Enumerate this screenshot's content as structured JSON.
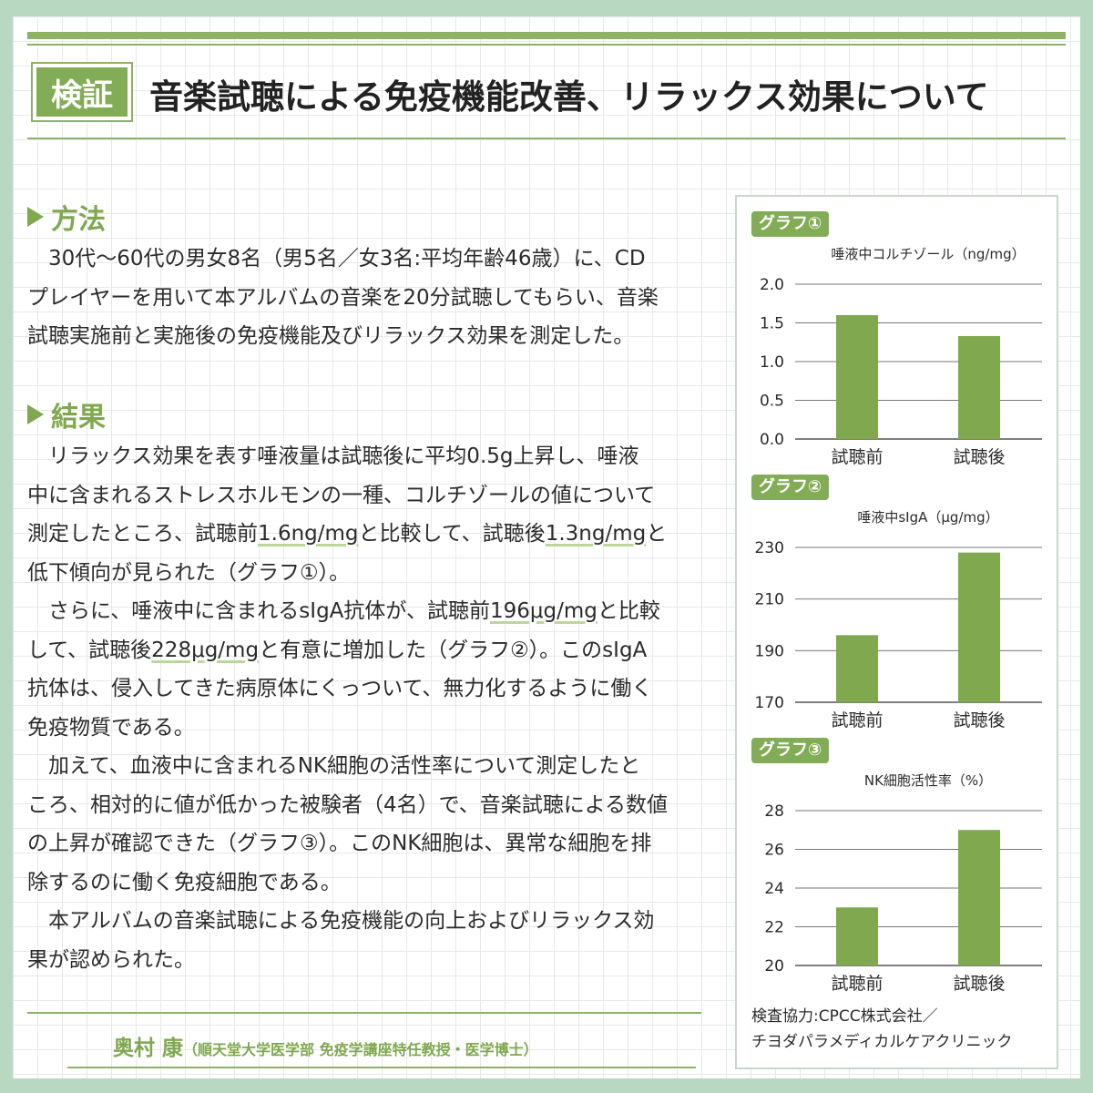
{
  "badge": "検証",
  "title": "音楽試聴による免疫機能改善、リラックス効果について",
  "method": {
    "heading": "方法",
    "lines": [
      "30代〜60代の男女8名（男5名／女3名:平均年齢46歳）に、CD",
      "プレイヤーを用いて本アルバムの音楽を20分試聴してもらい、音楽",
      "試聴実施前と実施後の免疫機能及びリラックス効果を測定した。"
    ]
  },
  "results": {
    "heading": "結果",
    "p1": {
      "l1": "リラックス効果を表す唾液量は試聴後に平均0.5g上昇し、唾液",
      "l2": "中に含まれるストレスホルモンの一種、コルチゾールの値について",
      "l3a": "測定したところ、試聴前",
      "l3b": "1.6ng/mg",
      "l3c": "と比較して、試聴後",
      "l3d": "1.3ng/mg",
      "l3e": "と",
      "l4": "低下傾向が見られた（グラフ①）。"
    },
    "p2": {
      "l1a": "さらに、唾液中に含まれるsIgA抗体が、試聴前",
      "l1b": "196μg/mg",
      "l1c": "と比較",
      "l2a": "して、試聴後",
      "l2b": "228μg/mg",
      "l2c": "と有意に増加した（グラフ②）。このsIgA",
      "l3": "抗体は、侵入してきた病原体にくっついて、無力化するように働く",
      "l4": "免疫物質である。"
    },
    "p3": {
      "l1": "加えて、血液中に含まれるNK細胞の活性率について測定したと",
      "l2": "ころ、相対的に値が低かった被験者（4名）で、音楽試聴による数値",
      "l3": "の上昇が確認できた（グラフ③）。このNK細胞は、異常な細胞を排",
      "l4": "除するのに働く免疫細胞である。"
    },
    "p4": {
      "l1": "本アルバムの音楽試聴による免疫機能の向上およびリラックス効",
      "l2": "果が認められた。"
    }
  },
  "author": {
    "name": "奥村 康",
    "affiliation": "（順天堂大学医学部 免疫学講座特任教授・医学博士）"
  },
  "colors": {
    "accent": "#83ac56",
    "bar": "#7fa84f",
    "background": "#b9d8c2"
  },
  "chart_data": [
    {
      "type": "bar",
      "tag": "グラフ①",
      "title": "唾液中コルチゾール（ng/mg）",
      "categories": [
        "試聴前",
        "試聴後"
      ],
      "values": [
        1.6,
        1.33
      ],
      "yticks": [
        "2.0",
        "1.5",
        "1.0",
        "0.5",
        "0.0"
      ],
      "ylim": [
        0,
        2.0
      ],
      "grid": true
    },
    {
      "type": "bar",
      "tag": "グラフ②",
      "title": "唾液中sIgA（μg/mg）",
      "categories": [
        "試聴前",
        "試聴後"
      ],
      "values": [
        196,
        228
      ],
      "yticks": [
        "230",
        "210",
        "190",
        "170"
      ],
      "ylim": [
        170,
        230
      ],
      "grid": true
    },
    {
      "type": "bar",
      "tag": "グラフ③",
      "title": "NK細胞活性率（%）",
      "categories": [
        "試聴前",
        "試聴後"
      ],
      "values": [
        23,
        27
      ],
      "yticks": [
        "28",
        "26",
        "24",
        "22",
        "20"
      ],
      "ylim": [
        20,
        28
      ],
      "grid": true
    }
  ],
  "note": {
    "l1": "検査協力:CPCC株式会社／",
    "l2": "チヨダパラメディカルケアクリニック"
  }
}
